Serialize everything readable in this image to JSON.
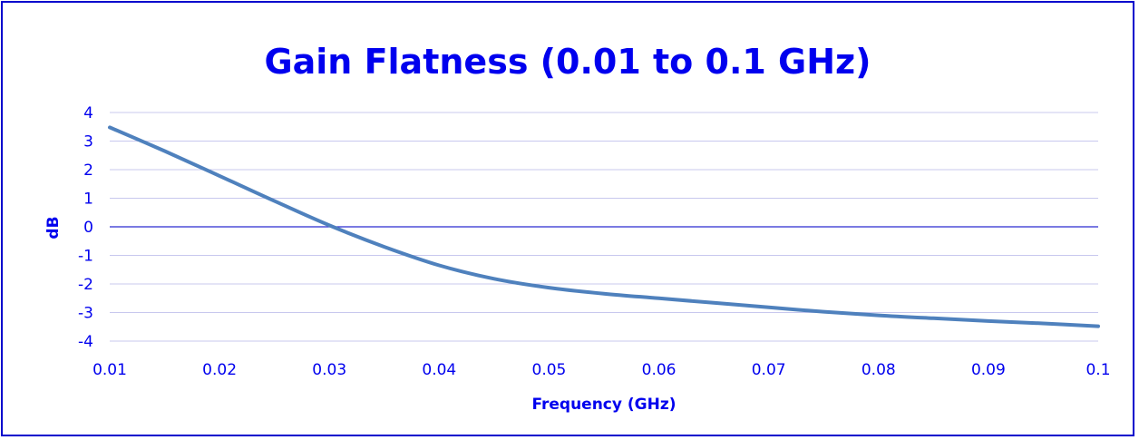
{
  "chart_data": {
    "type": "line",
    "title": "Gain Flatness (0.01 to 0.1 GHz)",
    "xlabel": "Frequency (GHz)",
    "ylabel": "dB",
    "xlim": [
      0.01,
      0.1
    ],
    "ylim": [
      -4,
      4
    ],
    "x_ticks": [
      "0.01",
      "0.02",
      "0.03",
      "0.04",
      "0.05",
      "0.06",
      "0.07",
      "0.08",
      "0.09",
      "0.1"
    ],
    "y_ticks": [
      "4",
      "3",
      "2",
      "1",
      "0",
      "-1",
      "-2",
      "-3",
      "-4"
    ],
    "grid": true,
    "legend": "none",
    "colors": {
      "text": "#0000ee",
      "frame": "#0000cc",
      "gridline": "#c8c8ee",
      "zero_line": "#2a2ad0",
      "series": "#4f81bd"
    },
    "series": [
      {
        "x": [
          0.01,
          0.015,
          0.02,
          0.025,
          0.03,
          0.035,
          0.04,
          0.045,
          0.05,
          0.055,
          0.06,
          0.065,
          0.07,
          0.075,
          0.08,
          0.085,
          0.09,
          0.095,
          0.1
        ],
        "values": [
          3.48,
          2.65,
          1.78,
          0.9,
          0.05,
          -0.7,
          -1.35,
          -1.82,
          -2.13,
          -2.34,
          -2.5,
          -2.66,
          -2.82,
          -2.97,
          -3.1,
          -3.2,
          -3.3,
          -3.38,
          -3.48
        ]
      }
    ]
  }
}
